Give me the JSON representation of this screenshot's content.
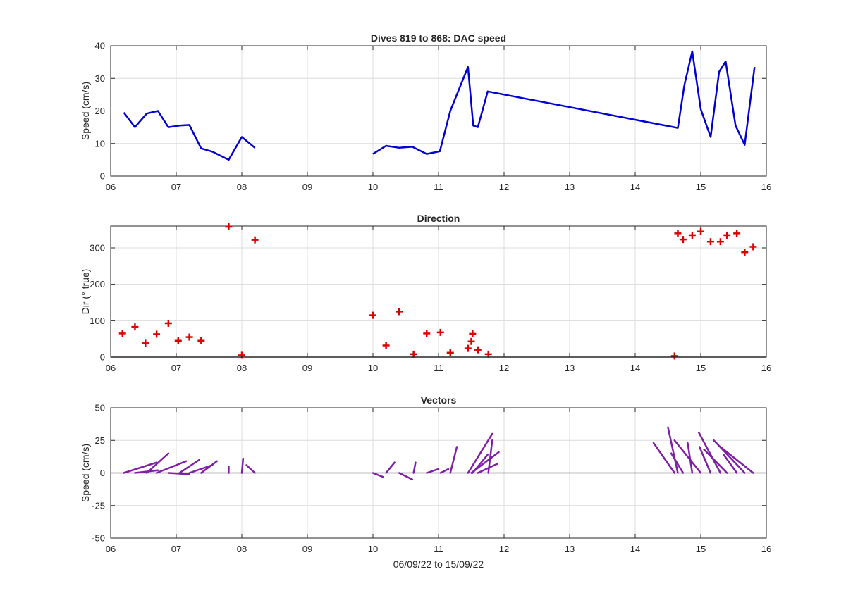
{
  "colors": {
    "speed": "#0000d0",
    "direction": "#dd0000",
    "vectors": "#7e1fa6",
    "grid": "#dcdcdc",
    "axis": "#262626"
  },
  "chart_data": [
    {
      "type": "line",
      "title": "Dives 819 to 868: DAC speed",
      "ylabel": "Speed (cm/s)",
      "xlabel": "",
      "xlim": [
        6,
        16
      ],
      "ylim": [
        0,
        40
      ],
      "xticks": [
        "06",
        "07",
        "08",
        "09",
        "10",
        "11",
        "12",
        "13",
        "14",
        "15",
        "16"
      ],
      "yticks": [
        "0",
        "10",
        "20",
        "30",
        "40"
      ],
      "grid": true,
      "series": [
        {
          "segments": [
            [
              [
                6.2,
                19.5
              ],
              [
                6.37,
                15.0
              ],
              [
                6.55,
                19.2
              ],
              [
                6.72,
                20.0
              ],
              [
                6.88,
                15.0
              ],
              [
                7.05,
                15.5
              ],
              [
                7.2,
                15.7
              ],
              [
                7.38,
                8.5
              ],
              [
                7.55,
                7.5
              ],
              [
                7.8,
                5.0
              ],
              [
                8.0,
                12.0
              ],
              [
                8.2,
                8.7
              ]
            ],
            [
              [
                10.0,
                6.8
              ],
              [
                10.2,
                9.3
              ],
              [
                10.4,
                8.7
              ],
              [
                10.6,
                9.0
              ],
              [
                10.82,
                6.8
              ],
              [
                11.02,
                7.6
              ],
              [
                11.18,
                20.0
              ],
              [
                11.45,
                33.5
              ],
              [
                11.53,
                15.5
              ],
              [
                11.6,
                15.0
              ],
              [
                11.75,
                26.0
              ],
              [
                14.65,
                14.8
              ],
              [
                14.75,
                28.0
              ],
              [
                14.87,
                38.3
              ],
              [
                15.0,
                20.5
              ],
              [
                15.15,
                12.0
              ],
              [
                15.28,
                32.0
              ],
              [
                15.38,
                35.2
              ],
              [
                15.53,
                15.5
              ],
              [
                15.67,
                9.6
              ],
              [
                15.82,
                33.5
              ]
            ]
          ]
        }
      ]
    },
    {
      "type": "scatter",
      "title": "Direction",
      "ylabel": "Dir (° true)",
      "xlabel": "",
      "xlim": [
        6,
        16
      ],
      "ylim": [
        0,
        360
      ],
      "xticks": [
        "06",
        "07",
        "08",
        "09",
        "10",
        "11",
        "12",
        "13",
        "14",
        "15",
        "16"
      ],
      "yticks": [
        "0",
        "100",
        "200",
        "300"
      ],
      "grid": true,
      "series": [
        {
          "points": [
            [
              6.18,
              65
            ],
            [
              6.37,
              83
            ],
            [
              6.53,
              38
            ],
            [
              6.7,
              63
            ],
            [
              6.88,
              93
            ],
            [
              7.03,
              45
            ],
            [
              7.2,
              55
            ],
            [
              7.38,
              45
            ],
            [
              7.8,
              358
            ],
            [
              8.0,
              5
            ],
            [
              8.2,
              322
            ],
            [
              10.0,
              115
            ],
            [
              10.2,
              32
            ],
            [
              10.4,
              125
            ],
            [
              10.62,
              8
            ],
            [
              10.82,
              65
            ],
            [
              11.03,
              68
            ],
            [
              11.18,
              12
            ],
            [
              11.45,
              24
            ],
            [
              11.5,
              43
            ],
            [
              11.52,
              64
            ],
            [
              11.6,
              20
            ],
            [
              11.76,
              8
            ],
            [
              14.6,
              3
            ],
            [
              14.65,
              340
            ],
            [
              14.73,
              323
            ],
            [
              14.87,
              335
            ],
            [
              15.0,
              345
            ],
            [
              15.15,
              317
            ],
            [
              15.3,
              317
            ],
            [
              15.4,
              335
            ],
            [
              15.55,
              340
            ],
            [
              15.67,
              288
            ],
            [
              15.8,
              303
            ]
          ]
        }
      ]
    },
    {
      "type": "vector",
      "title": "Vectors",
      "ylabel": "Speed (cm/s)",
      "xlabel": "06/09/22 to 15/09/22",
      "xlim": [
        6,
        16
      ],
      "ylim": [
        -50,
        50
      ],
      "xticks": [
        "06",
        "07",
        "08",
        "09",
        "10",
        "11",
        "12",
        "13",
        "14",
        "15",
        "16"
      ],
      "yticks": [
        "-50",
        "-25",
        "0",
        "25",
        "50"
      ],
      "grid": true,
      "zero_line": true,
      "series": [
        {
          "vectors": [
            [
              6.2,
              0,
              6.7,
              8
            ],
            [
              6.37,
              0,
              6.72,
              2
            ],
            [
              6.55,
              0,
              6.88,
              15
            ],
            [
              6.7,
              0,
              7.15,
              9
            ],
            [
              6.88,
              0,
              7.2,
              -1
            ],
            [
              7.05,
              0,
              7.35,
              10
            ],
            [
              7.2,
              0,
              7.55,
              6
            ],
            [
              7.38,
              0,
              7.62,
              9
            ],
            [
              7.8,
              0,
              7.8,
              5
            ],
            [
              8.0,
              0,
              8.02,
              11
            ],
            [
              8.2,
              0,
              8.07,
              6
            ],
            [
              10.0,
              0,
              10.15,
              -3
            ],
            [
              10.2,
              0,
              10.33,
              8
            ],
            [
              10.4,
              0,
              10.6,
              -5
            ],
            [
              10.62,
              0,
              10.65,
              8
            ],
            [
              10.82,
              0,
              11.0,
              3
            ],
            [
              11.03,
              0,
              11.15,
              3
            ],
            [
              11.18,
              0,
              11.28,
              20
            ],
            [
              11.45,
              0,
              11.82,
              30
            ],
            [
              11.5,
              0,
              11.92,
              16
            ],
            [
              11.52,
              0,
              11.75,
              14
            ],
            [
              11.6,
              0,
              11.9,
              7
            ],
            [
              11.76,
              0,
              11.82,
              25
            ],
            [
              14.6,
              0,
              14.28,
              23
            ],
            [
              14.65,
              0,
              14.5,
              35
            ],
            [
              14.73,
              0,
              14.55,
              15
            ],
            [
              14.87,
              0,
              14.8,
              23
            ],
            [
              15.0,
              0,
              14.6,
              25
            ],
            [
              15.15,
              0,
              14.98,
              20
            ],
            [
              15.3,
              0,
              14.97,
              31
            ],
            [
              15.4,
              0,
              15.05,
              18
            ],
            [
              15.55,
              0,
              15.35,
              14
            ],
            [
              15.67,
              0,
              15.2,
              25
            ],
            [
              15.8,
              0,
              15.3,
              20
            ]
          ]
        }
      ]
    }
  ]
}
